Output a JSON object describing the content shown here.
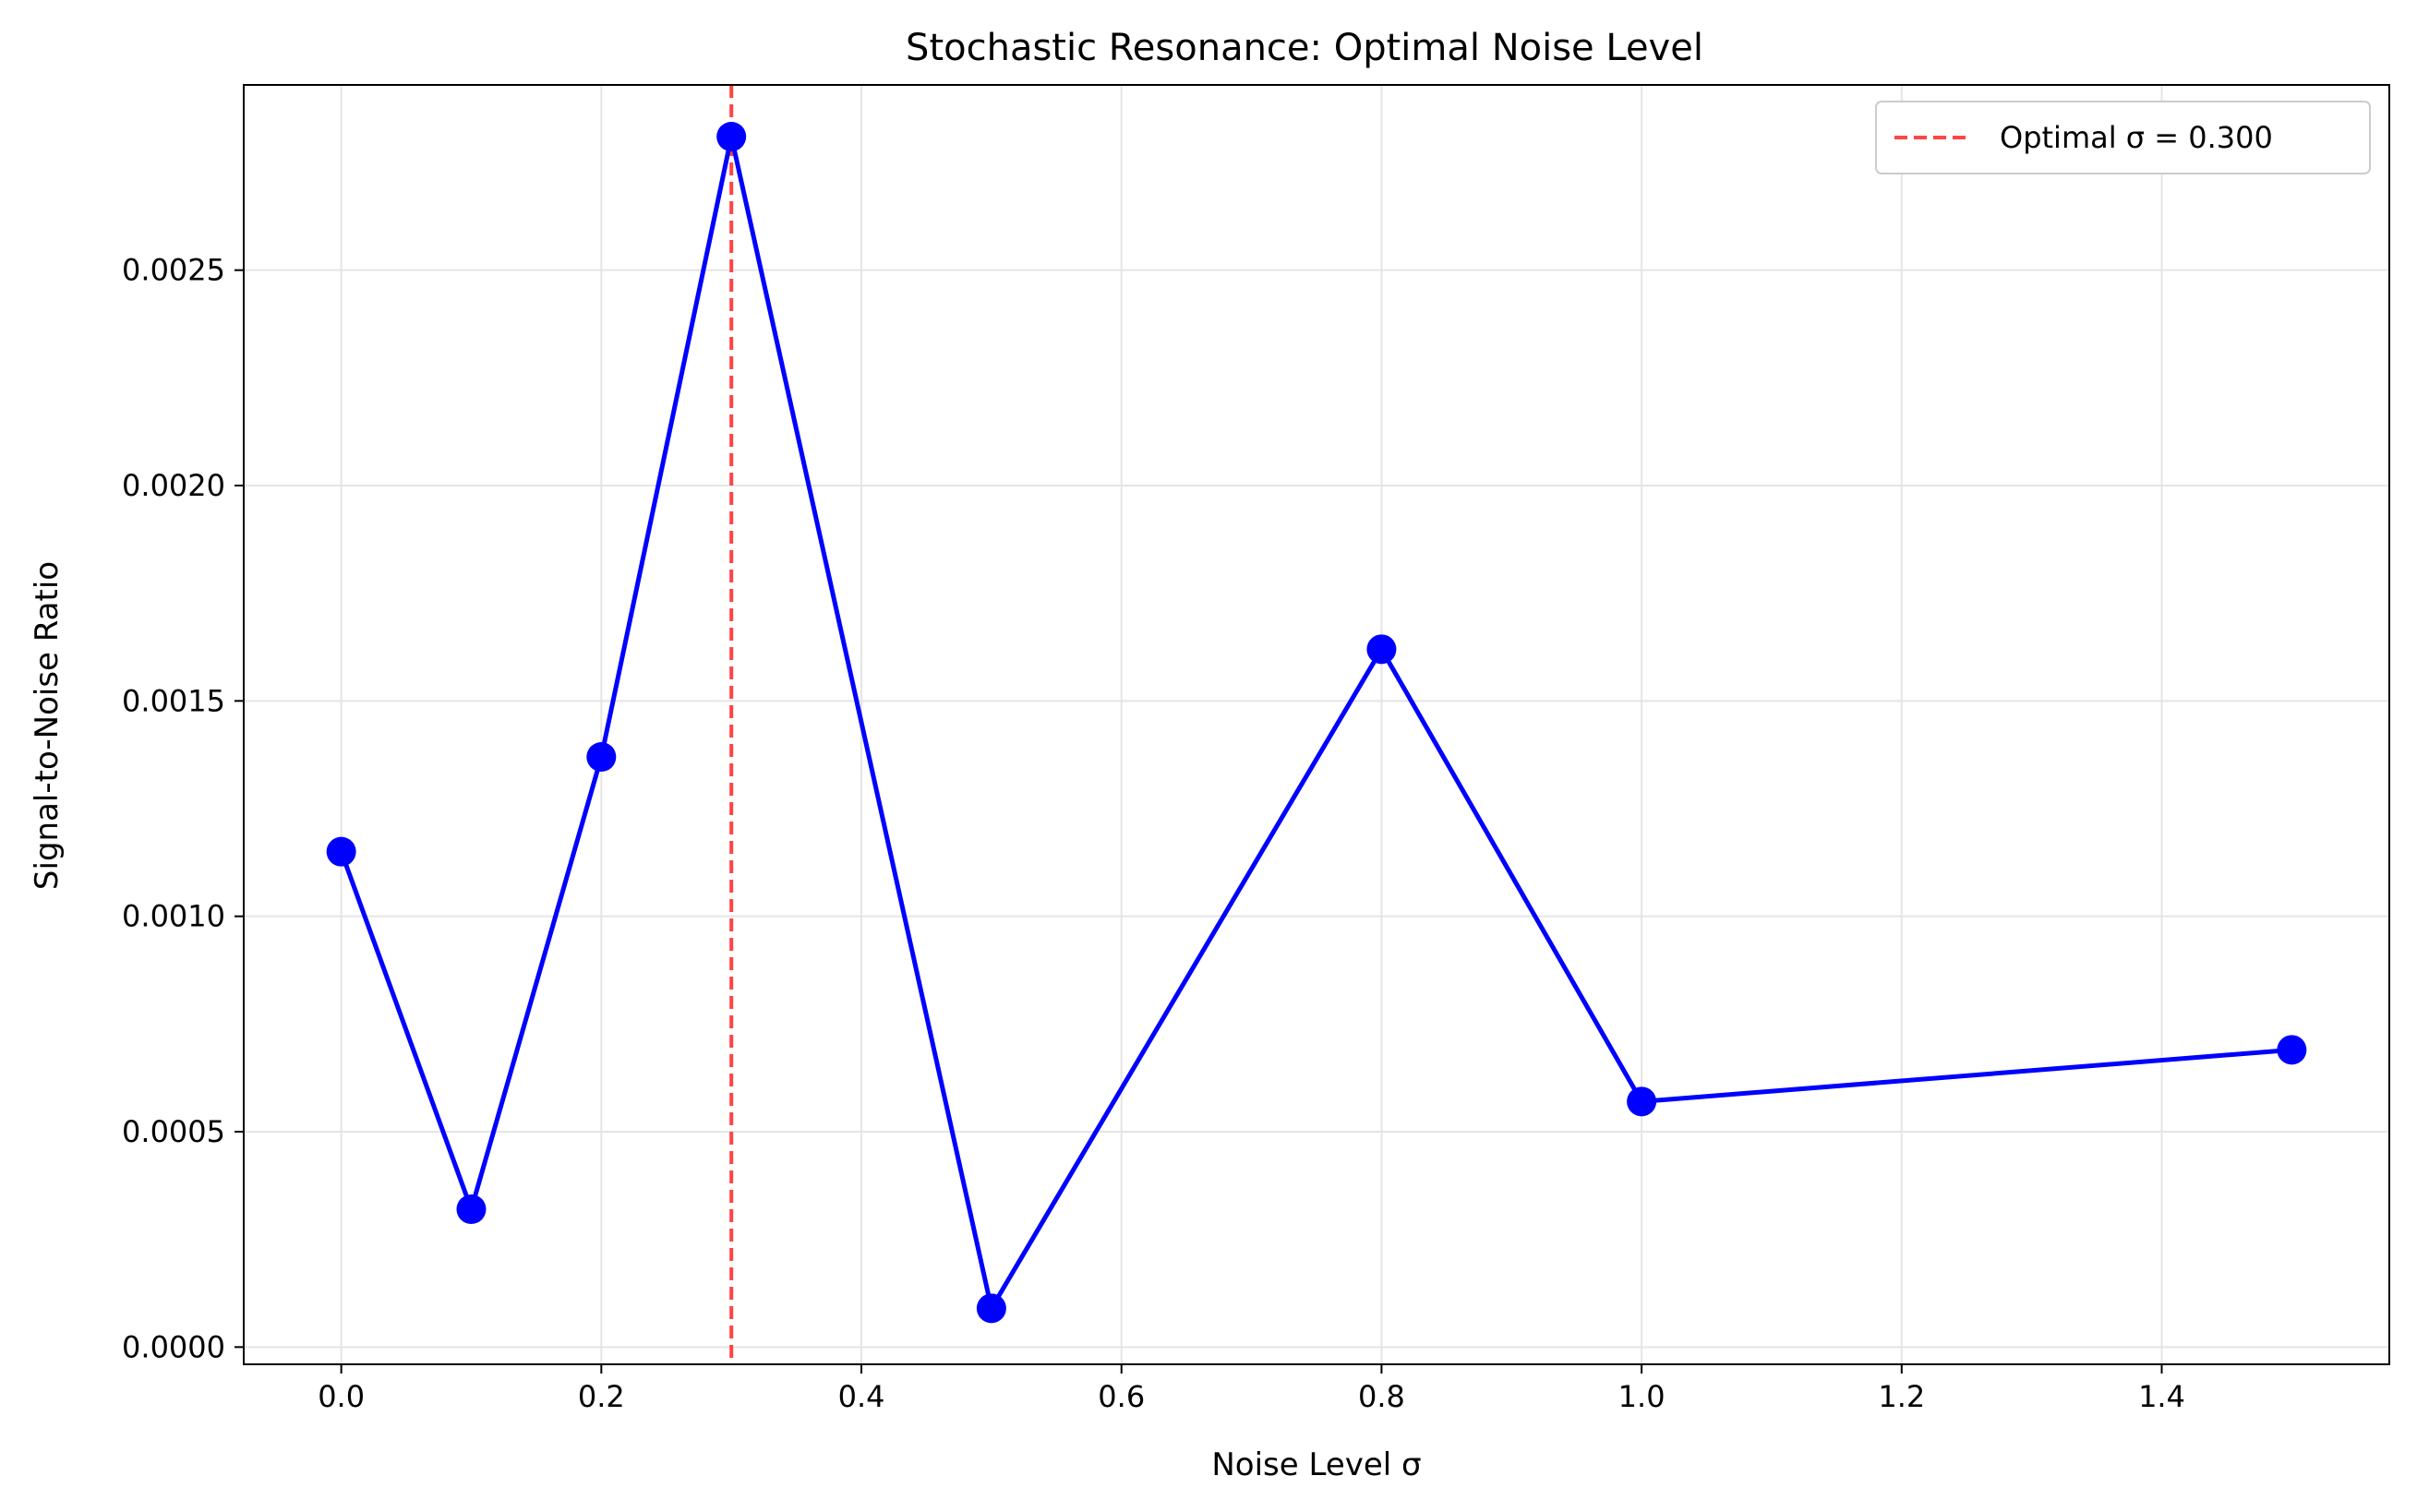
{
  "chart_data": {
    "type": "line",
    "title": "Stochastic Resonance: Optimal Noise Level",
    "xlabel": "Noise Level σ",
    "ylabel": "Signal-to-Noise Ratio",
    "xlim": [
      -0.075,
      1.575
    ],
    "ylim": [
      -4e-05,
      0.00293
    ],
    "xticks": [
      0.0,
      0.2,
      0.4,
      0.6,
      0.8,
      1.0,
      1.2,
      1.4
    ],
    "xtick_labels": [
      "0.0",
      "0.2",
      "0.4",
      "0.6",
      "0.8",
      "1.0",
      "1.2",
      "1.4"
    ],
    "yticks": [
      0.0,
      0.0005,
      0.001,
      0.0015,
      0.002,
      0.0025
    ],
    "ytick_labels": [
      "0.0000",
      "0.0005",
      "0.0010",
      "0.0015",
      "0.0020",
      "0.0025"
    ],
    "grid": true,
    "legend_position": "top-right",
    "series": [
      {
        "color": "#0000ff",
        "marker": "circle",
        "x": [
          0.0,
          0.1,
          0.2,
          0.3,
          0.5,
          0.8,
          1.0,
          1.5
        ],
        "y": [
          0.00115,
          0.00032,
          0.00137,
          0.00281,
          9e-05,
          0.00162,
          0.00057,
          0.00069
        ]
      }
    ],
    "reference_line": {
      "orientation": "vertical",
      "x": 0.3,
      "label": "Optimal σ = 0.300",
      "color": "#ff4444",
      "style": "dashed"
    }
  }
}
